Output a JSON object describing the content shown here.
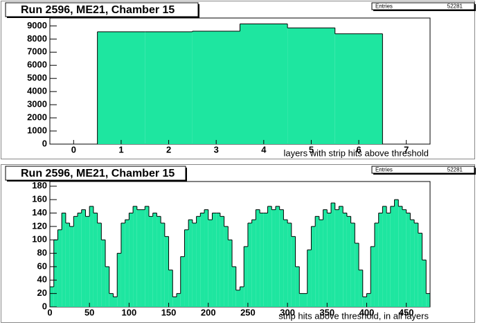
{
  "chart_data": [
    {
      "type": "histogram",
      "title": "Run 2596, ME21, Chamber 15",
      "stats_label": "Entries",
      "stats_value": 52281,
      "x_label": "layers with strip hits above threshold",
      "bins": [
        -0.5,
        0.5,
        1.5,
        2.5,
        3.5,
        4.5,
        5.5,
        6.5,
        7.5
      ],
      "values": [
        0,
        8550,
        8550,
        8600,
        9150,
        8850,
        8400,
        0
      ],
      "color": "#1ee6a0",
      "xlim": [
        -0.5,
        7.5
      ],
      "ylim": [
        0,
        9600
      ],
      "xticks": [
        0,
        1,
        2,
        3,
        4,
        5,
        6,
        7
      ],
      "yticks": [
        0,
        1000,
        2000,
        3000,
        4000,
        5000,
        6000,
        7000,
        8000,
        9000
      ]
    },
    {
      "type": "histogram",
      "title": "Run 2596, ME21, Chamber 15",
      "stats_label": "Entries",
      "stats_value": 52281,
      "x_label": "strip hits above threshold, in all layers",
      "bins": [
        0,
        5,
        10,
        15,
        20,
        25,
        30,
        35,
        40,
        45,
        50,
        55,
        60,
        65,
        70,
        75,
        80,
        85,
        90,
        95,
        100,
        105,
        110,
        115,
        120,
        125,
        130,
        135,
        140,
        145,
        150,
        155,
        160,
        165,
        170,
        175,
        180,
        185,
        190,
        195,
        200,
        205,
        210,
        215,
        220,
        225,
        230,
        235,
        240,
        245,
        250,
        255,
        260,
        265,
        270,
        275,
        280,
        285,
        290,
        295,
        300,
        305,
        310,
        315,
        320,
        325,
        330,
        335,
        340,
        345,
        350,
        355,
        360,
        365,
        370,
        375,
        380,
        385,
        390,
        395,
        400,
        405,
        410,
        415,
        420,
        425,
        430,
        435,
        440,
        445,
        450,
        455,
        460,
        465,
        470,
        475,
        480
      ],
      "values": [
        30,
        100,
        115,
        140,
        125,
        120,
        135,
        140,
        145,
        135,
        150,
        140,
        125,
        100,
        60,
        20,
        15,
        80,
        125,
        130,
        140,
        150,
        145,
        145,
        150,
        135,
        140,
        135,
        125,
        105,
        55,
        15,
        20,
        75,
        115,
        130,
        125,
        135,
        140,
        145,
        130,
        140,
        140,
        135,
        120,
        100,
        60,
        25,
        30,
        90,
        125,
        130,
        145,
        140,
        140,
        150,
        145,
        150,
        145,
        130,
        125,
        105,
        60,
        20,
        20,
        85,
        120,
        135,
        130,
        145,
        140,
        155,
        145,
        150,
        140,
        135,
        125,
        95,
        55,
        15,
        20,
        90,
        125,
        140,
        150,
        140,
        150,
        160,
        150,
        145,
        140,
        130,
        125,
        110,
        70,
        20
      ],
      "color": "#1ee6a0",
      "xlim": [
        0,
        480
      ],
      "ylim": [
        0,
        187
      ],
      "xticks": [
        0,
        50,
        100,
        150,
        200,
        250,
        300,
        350,
        400,
        450
      ],
      "yticks": [
        0,
        20,
        40,
        60,
        80,
        100,
        120,
        140,
        160,
        180
      ]
    }
  ]
}
